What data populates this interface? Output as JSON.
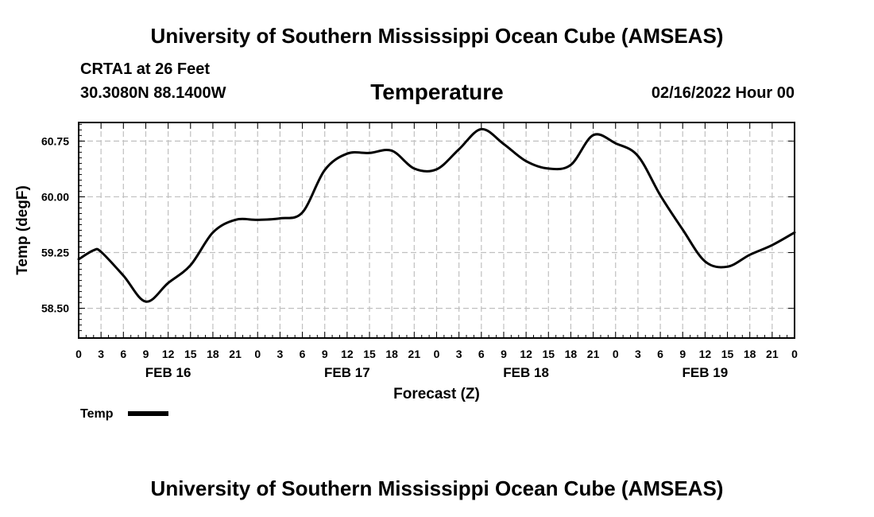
{
  "header": {
    "title": "University of Southern Mississippi Ocean Cube (AMSEAS)",
    "station": "CRTA1 at 26 Feet",
    "coords": "30.3080N  88.1400W",
    "chart_title": "Temperature",
    "datetime": "02/16/2022 Hour 00"
  },
  "footer": {
    "title": "University of Southern Mississippi Ocean Cube (AMSEAS)"
  },
  "colors": {
    "line": "#000000",
    "grid": "#c0c0c0",
    "frame": "#000000"
  },
  "chart_data": {
    "type": "line",
    "title": "Temperature",
    "xlabel": "Forecast (Z)",
    "ylabel": "Temp (degF)",
    "xlim": [
      0,
      96
    ],
    "ylim": [
      58.1,
      61.0
    ],
    "grid": true,
    "x_ticks": [
      0,
      3,
      6,
      9,
      12,
      15,
      18,
      21,
      24,
      27,
      30,
      33,
      36,
      39,
      42,
      45,
      48,
      51,
      54,
      57,
      60,
      63,
      66,
      69,
      72,
      75,
      78,
      81,
      84,
      87,
      90,
      93,
      96
    ],
    "x_tick_labels": [
      "0",
      "3",
      "6",
      "9",
      "12",
      "15",
      "18",
      "21",
      "0",
      "3",
      "6",
      "9",
      "12",
      "15",
      "18",
      "21",
      "0",
      "3",
      "6",
      "9",
      "12",
      "15",
      "18",
      "21",
      "0",
      "3",
      "6",
      "9",
      "12",
      "15",
      "18",
      "21",
      "0"
    ],
    "day_labels": [
      {
        "x": 12,
        "label": "FEB 16"
      },
      {
        "x": 36,
        "label": "FEB 17"
      },
      {
        "x": 60,
        "label": "FEB 18"
      },
      {
        "x": 84,
        "label": "FEB 19"
      }
    ],
    "y_ticks": [
      58.5,
      59.25,
      60.0,
      60.75
    ],
    "y_tick_labels": [
      "58.50",
      "59.25",
      "60.00",
      "60.75"
    ],
    "series": [
      {
        "name": "Temp",
        "x": [
          0,
          2,
          3,
          6,
          9,
          12,
          15,
          18,
          21,
          24,
          27,
          30,
          33,
          36,
          39,
          42,
          45,
          48,
          51,
          54,
          57,
          60,
          63,
          66,
          69,
          72,
          75,
          78,
          81,
          84,
          87,
          90,
          93,
          96
        ],
        "y": [
          59.16,
          59.28,
          59.26,
          58.94,
          58.59,
          58.84,
          59.08,
          59.52,
          59.69,
          59.69,
          59.71,
          59.79,
          60.36,
          60.58,
          60.59,
          60.62,
          60.38,
          60.37,
          60.64,
          60.91,
          60.71,
          60.48,
          60.38,
          60.43,
          60.83,
          60.72,
          60.55,
          60.02,
          59.56,
          59.13,
          59.06,
          59.22,
          59.35,
          59.52
        ]
      }
    ],
    "legend": {
      "label": "Temp",
      "position": "bottom-left"
    }
  }
}
